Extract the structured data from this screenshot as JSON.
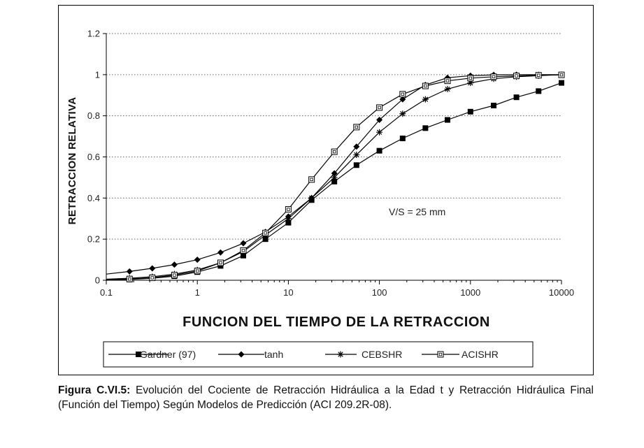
{
  "chart_data": {
    "type": "line",
    "title": "",
    "xlabel": "FUNCION DEL TIEMPO DE LA RETRACCION",
    "ylabel": "RETRACCION RELATIVA",
    "x_scale": "log",
    "xlim": [
      0.1,
      10000
    ],
    "ylim": [
      0,
      1.2
    ],
    "x_ticks": [
      0.1,
      1,
      10,
      100,
      1000,
      10000
    ],
    "x_tick_labels": [
      "0.1",
      "1",
      "10",
      "100",
      "1000",
      "10000"
    ],
    "y_ticks": [
      0,
      0.2,
      0.4,
      0.6,
      0.8,
      1,
      1.2
    ],
    "y_tick_labels": [
      "0",
      "0.2",
      "0.4",
      "0.6",
      "0.8",
      "1",
      "1.2"
    ],
    "grid": "horizontal-dotted",
    "legend_position": "bottom",
    "annotation": "V/S = 25 mm",
    "series": [
      {
        "name": "Gardner (97)",
        "marker": "filled-square",
        "x": [
          0.1,
          0.18,
          0.32,
          0.56,
          1,
          1.8,
          3.2,
          5.6,
          10,
          18,
          32,
          56,
          100,
          180,
          320,
          560,
          1000,
          1800,
          3200,
          5600,
          10000
        ],
        "y": [
          0,
          0.004,
          0.01,
          0.02,
          0.04,
          0.07,
          0.12,
          0.2,
          0.28,
          0.39,
          0.48,
          0.56,
          0.63,
          0.69,
          0.74,
          0.78,
          0.82,
          0.85,
          0.89,
          0.92,
          0.96
        ]
      },
      {
        "name": "tanh",
        "marker": "filled-diamond",
        "x": [
          0.1,
          0.18,
          0.32,
          0.56,
          1,
          1.8,
          3.2,
          5.6,
          10,
          18,
          32,
          56,
          100,
          180,
          320,
          560,
          1000,
          1800,
          3200,
          5600,
          10000
        ],
        "y": [
          0.03,
          0.043,
          0.058,
          0.076,
          0.1,
          0.135,
          0.18,
          0.235,
          0.31,
          0.4,
          0.52,
          0.65,
          0.78,
          0.88,
          0.95,
          0.985,
          0.995,
          0.999,
          1,
          1,
          1
        ]
      },
      {
        "name": "CEBSHR",
        "marker": "asterisk",
        "x": [
          0.1,
          0.18,
          0.32,
          0.56,
          1,
          1.8,
          3.2,
          5.6,
          10,
          18,
          32,
          56,
          100,
          180,
          320,
          560,
          1000,
          1800,
          3200,
          5600,
          10000
        ],
        "y": [
          0.005,
          0.01,
          0.017,
          0.03,
          0.05,
          0.085,
          0.14,
          0.22,
          0.3,
          0.4,
          0.5,
          0.61,
          0.72,
          0.81,
          0.88,
          0.93,
          0.96,
          0.98,
          0.99,
          0.995,
          1
        ]
      },
      {
        "name": "ACISHR",
        "marker": "open-square",
        "x": [
          0.1,
          0.18,
          0.32,
          0.56,
          1,
          1.8,
          3.2,
          5.6,
          10,
          18,
          32,
          56,
          100,
          180,
          320,
          560,
          1000,
          1800,
          3200,
          5600,
          10000
        ],
        "y": [
          0.003,
          0.006,
          0.012,
          0.025,
          0.045,
          0.085,
          0.145,
          0.23,
          0.345,
          0.49,
          0.625,
          0.745,
          0.84,
          0.905,
          0.945,
          0.97,
          0.983,
          0.99,
          0.994,
          0.997,
          0.999
        ]
      }
    ]
  },
  "caption": {
    "label": "Figura C.VI.5:",
    "text": " Evolución del Cociente de Retracción Hidráulica a la Edad t y Retracción Hidráulica Final (Función del Tiempo) Según Modelos de Predicción (ACI 209.2R-08)."
  }
}
